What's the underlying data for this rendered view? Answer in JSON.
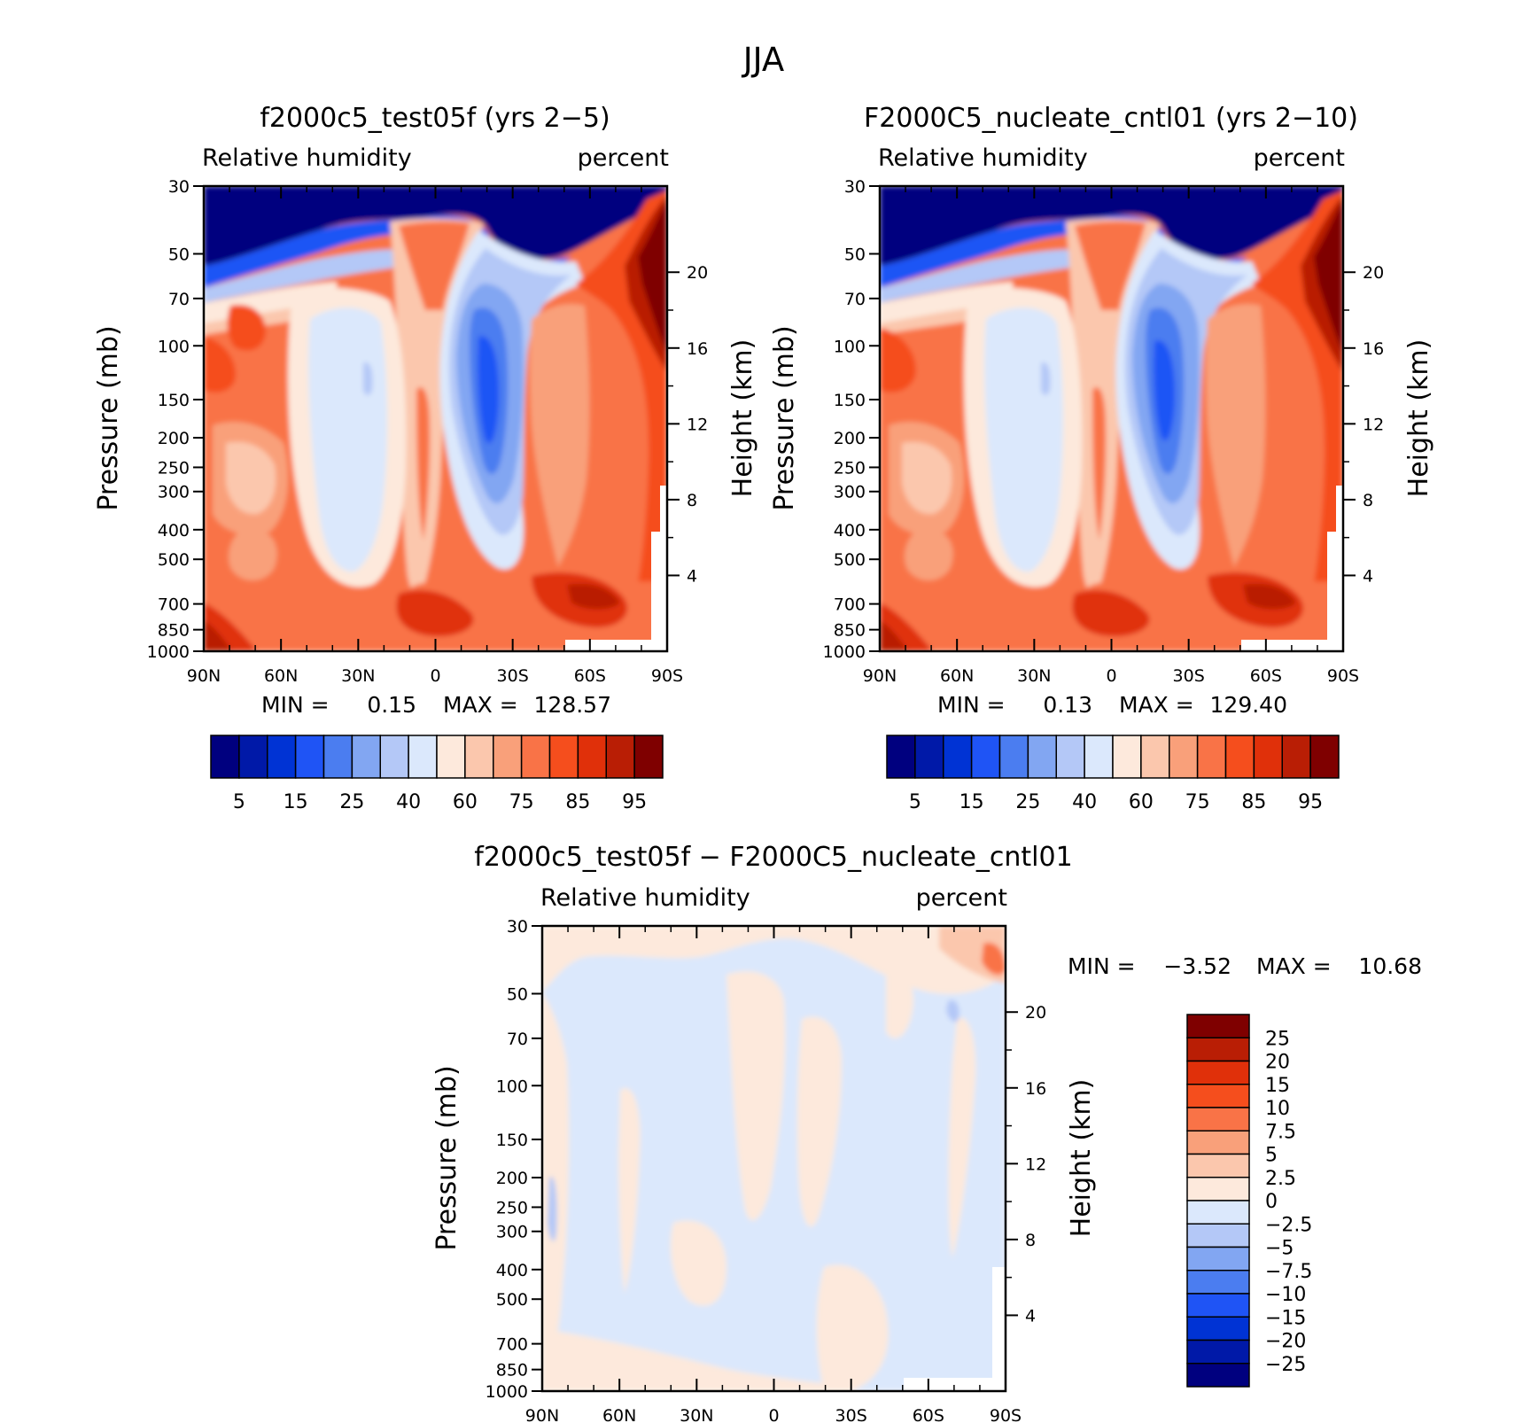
{
  "figure": {
    "title": "JJA"
  },
  "colors": {
    "rh_scale": [
      "#00007f",
      "#0019a8",
      "#0033d4",
      "#1f54f5",
      "#4b7df0",
      "#82a6f2",
      "#b4c8f7",
      "#dbe8fc",
      "#fde9dc",
      "#fbc7ad",
      "#f9a07a",
      "#f97347",
      "#f54e1d",
      "#e0300a",
      "#b91e05",
      "#7f0000"
    ],
    "diff_scale": [
      "#00007f",
      "#0019a8",
      "#0033d4",
      "#1f54f5",
      "#4b7df0",
      "#82a6f2",
      "#b4c8f7",
      "#dbe8fc",
      "#fde9dc",
      "#fbc7ad",
      "#f9a07a",
      "#f97347",
      "#f54e1d",
      "#e0300a",
      "#b91e05",
      "#7f0000"
    ]
  },
  "chart_data": [
    {
      "type": "heatmap",
      "title": "f2000c5_test05f (yrs 2−5)",
      "left_label": "Relative humidity",
      "right_label": "percent",
      "ylabel": "Pressure (mb)",
      "y2label": "Height (km)",
      "x_ticks": [
        "90N",
        "60N",
        "30N",
        "0",
        "30S",
        "60S",
        "90S"
      ],
      "y_ticks": [
        "30",
        "50",
        "70",
        "100",
        "150",
        "200",
        "250",
        "300",
        "400",
        "500",
        "700",
        "850",
        "1000"
      ],
      "y2_ticks": [
        "20",
        "16",
        "12",
        "8",
        "4"
      ],
      "stats": {
        "min_label": "MIN =",
        "min": "0.15",
        "max_label": "MAX =",
        "max": "128.57"
      },
      "colorbar_labels": [
        "5",
        "15",
        "25",
        "40",
        "60",
        "75",
        "85",
        "95"
      ],
      "levels": [
        5,
        10,
        15,
        20,
        25,
        30,
        40,
        50,
        60,
        70,
        75,
        80,
        85,
        90,
        95
      ]
    },
    {
      "type": "heatmap",
      "title": "F2000C5_nucleate_cntl01 (yrs 2−10)",
      "left_label": "Relative humidity",
      "right_label": "percent",
      "ylabel": "Pressure (mb)",
      "y2label": "Height (km)",
      "x_ticks": [
        "90N",
        "60N",
        "30N",
        "0",
        "30S",
        "60S",
        "90S"
      ],
      "y_ticks": [
        "30",
        "50",
        "70",
        "100",
        "150",
        "200",
        "250",
        "300",
        "400",
        "500",
        "700",
        "850",
        "1000"
      ],
      "y2_ticks": [
        "20",
        "16",
        "12",
        "8",
        "4"
      ],
      "stats": {
        "min_label": "MIN =",
        "min": "0.13",
        "max_label": "MAX =",
        "max": "129.40"
      },
      "colorbar_labels": [
        "5",
        "15",
        "25",
        "40",
        "60",
        "75",
        "85",
        "95"
      ],
      "levels": [
        5,
        10,
        15,
        20,
        25,
        30,
        40,
        50,
        60,
        70,
        75,
        80,
        85,
        90,
        95
      ]
    },
    {
      "type": "heatmap",
      "title": "f2000c5_test05f − F2000C5_nucleate_cntl01",
      "left_label": "Relative humidity",
      "right_label": "percent",
      "ylabel": "Pressure (mb)",
      "y2label": "Height (km)",
      "x_ticks": [
        "90N",
        "60N",
        "30N",
        "0",
        "30S",
        "60S",
        "90S"
      ],
      "y_ticks": [
        "30",
        "50",
        "70",
        "100",
        "150",
        "200",
        "250",
        "300",
        "400",
        "500",
        "700",
        "850",
        "1000"
      ],
      "y2_ticks": [
        "20",
        "16",
        "12",
        "8",
        "4"
      ],
      "stats": {
        "min_label": "MIN =",
        "min": "−3.52",
        "max_label": "MAX =",
        "max": "10.68"
      },
      "colorbar_labels": [
        "25",
        "20",
        "15",
        "10",
        "7.5",
        "5",
        "2.5",
        "0",
        "−2.5",
        "−5",
        "−7.5",
        "−10",
        "−15",
        "−20",
        "−25"
      ],
      "levels": [
        -25,
        -20,
        -15,
        -10,
        -7.5,
        -5,
        -2.5,
        0,
        2.5,
        5,
        7.5,
        10,
        15,
        20,
        25
      ]
    }
  ]
}
